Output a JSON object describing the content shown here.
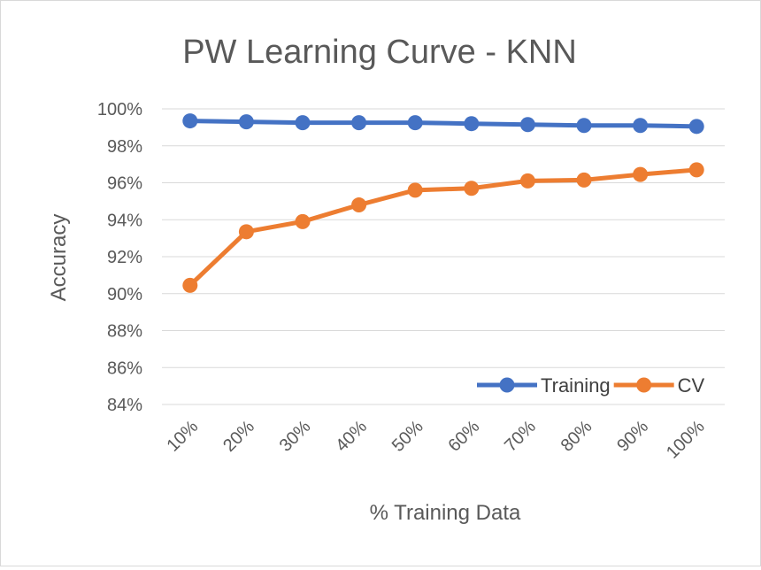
{
  "chart_data": {
    "type": "line",
    "title": "PW Learning Curve - KNN",
    "xlabel": "% Training Data",
    "ylabel": "Accuracy",
    "categories": [
      "10%",
      "20%",
      "30%",
      "40%",
      "50%",
      "60%",
      "70%",
      "80%",
      "90%",
      "100%"
    ],
    "y_ticks": [
      "84%",
      "86%",
      "88%",
      "90%",
      "92%",
      "94%",
      "96%",
      "98%",
      "100%"
    ],
    "ylim": [
      84,
      100
    ],
    "grid": true,
    "legend_position": "bottom-right",
    "series": [
      {
        "name": "Training",
        "color": "#4472C4",
        "values": [
          99.35,
          99.3,
          99.25,
          99.25,
          99.25,
          99.2,
          99.15,
          99.1,
          99.1,
          99.05
        ]
      },
      {
        "name": "CV",
        "color": "#ED7D31",
        "values": [
          90.45,
          93.35,
          93.9,
          94.8,
          95.6,
          95.7,
          96.1,
          96.15,
          96.45,
          96.7
        ]
      }
    ]
  }
}
